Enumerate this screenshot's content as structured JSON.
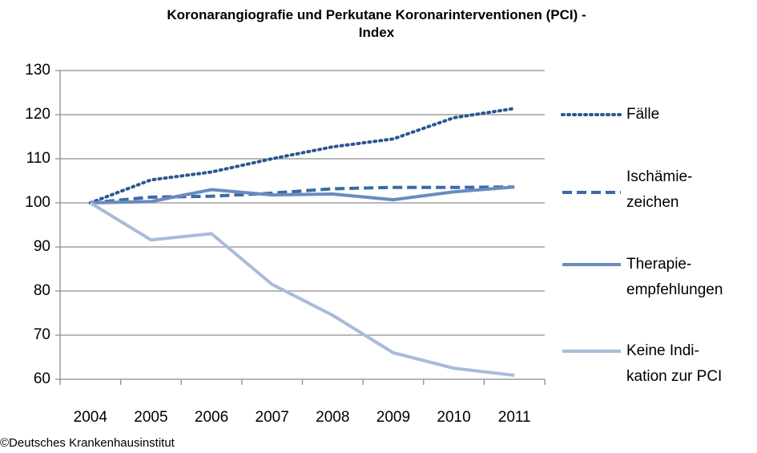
{
  "chart_data": {
    "type": "line",
    "title": "Koronarangiografie  und Perkutane Koronarinterventionen (PCI) -\nIndex",
    "categories": [
      "2004",
      "2005",
      "2006",
      "2007",
      "2008",
      "2009",
      "2010",
      "2011"
    ],
    "series": [
      {
        "name": "Fälle",
        "color": "#2e5590",
        "dash": "dotted",
        "values": [
          100,
          105.2,
          107,
          110,
          112.7,
          114.5,
          119.3,
          121.4
        ]
      },
      {
        "name": "Ischämie-\nzeichen",
        "color": "#3c6aa8",
        "dash": "dashed",
        "values": [
          100,
          101.3,
          101.5,
          102.2,
          103.2,
          103.5,
          103.5,
          103.6
        ]
      },
      {
        "name": "Therapie-\nempfehlungen",
        "color": "#6a8bbd",
        "dash": "solid",
        "values": [
          100,
          100.3,
          103,
          101.8,
          102,
          100.7,
          102.5,
          103.6
        ]
      },
      {
        "name": "Keine Indi-\nkation zur PCI",
        "color": "#a9bbd9",
        "dash": "solid",
        "values": [
          100,
          91.6,
          93,
          81.5,
          74.5,
          66,
          62.5,
          60.9
        ]
      }
    ],
    "ylim": [
      60,
      130
    ],
    "yticks": [
      60,
      70,
      80,
      90,
      100,
      110,
      120,
      130
    ],
    "grid": true,
    "legend": "right",
    "source": "©Deutsches Krankenhausinstitut"
  }
}
